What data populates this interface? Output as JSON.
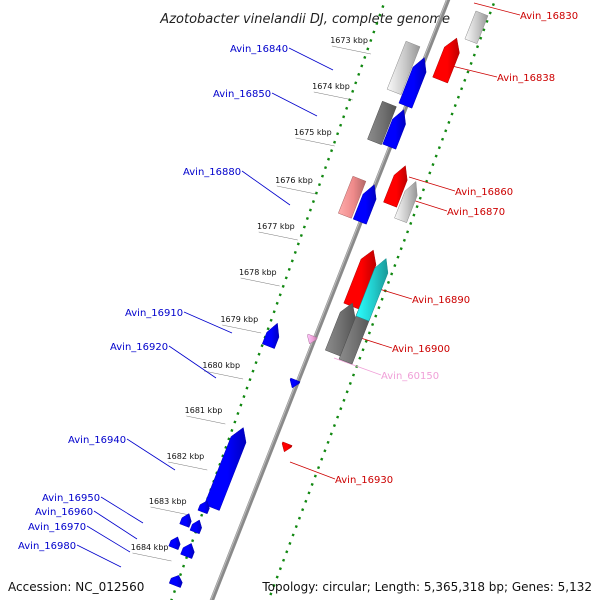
{
  "title": "Azotobacter vinelandii DJ, complete genome",
  "accession": "Accession: NC_012560",
  "topology": "Topology: circular; Length: 5,365,318 bp; Genes: 5,132",
  "ticks": [
    "1673 kbp",
    "1674 kbp",
    "1675 kbp",
    "1676 kbp",
    "1677 kbp",
    "1678 kbp",
    "1679 kbp",
    "1680 kbp",
    "1681 kbp",
    "1682 kbp",
    "1683 kbp",
    "1684 kbp"
  ],
  "colors": {
    "blue": "#0000ff",
    "red": "#ff0000",
    "gray": "#c8c8c8",
    "dark_gray": "#707070",
    "pink": "#ee8a8a",
    "cyan": "#22cccc",
    "light_pink": "#f0a0d8",
    "backbone": "#8a8a8a",
    "dots": "#118811",
    "blue_label": "#0000cc",
    "red_label": "#cc0000",
    "pink_label": "#f0a0d8"
  },
  "genes": [
    {
      "label": "Avin_16830",
      "strand": "+",
      "color": "red"
    },
    {
      "label": "Avin_16838",
      "strand": "+",
      "color": "red"
    },
    {
      "label": "Avin_16840",
      "strand": "-",
      "color": "gray"
    },
    {
      "label": "Avin_16850",
      "strand": "-",
      "color": "blue"
    },
    {
      "label": "Avin_16860",
      "strand": "+",
      "color": "red"
    },
    {
      "label": "Avin_16870",
      "strand": "+",
      "color": "gray"
    },
    {
      "label": "Avin_16880",
      "strand": "-",
      "color": "blue"
    },
    {
      "label": "Avin_16890",
      "strand": "+",
      "color": "cyan"
    },
    {
      "label": "Avin_16900",
      "strand": "+",
      "color": "dark_gray"
    },
    {
      "label": "Avin_60150",
      "strand": "+",
      "color": "light_pink"
    },
    {
      "label": "Avin_16910",
      "strand": "-",
      "color": "blue"
    },
    {
      "label": "Avin_16920",
      "strand": "-",
      "color": "blue"
    },
    {
      "label": "Avin_16930",
      "strand": "+",
      "color": "red"
    },
    {
      "label": "Avin_16940",
      "strand": "-",
      "color": "blue"
    },
    {
      "label": "Avin_16950",
      "strand": "-",
      "color": "blue"
    },
    {
      "label": "Avin_16960",
      "strand": "-",
      "color": "blue"
    },
    {
      "label": "Avin_16970",
      "strand": "-",
      "color": "blue"
    },
    {
      "label": "Avin_16980",
      "strand": "-",
      "color": "blue"
    }
  ]
}
